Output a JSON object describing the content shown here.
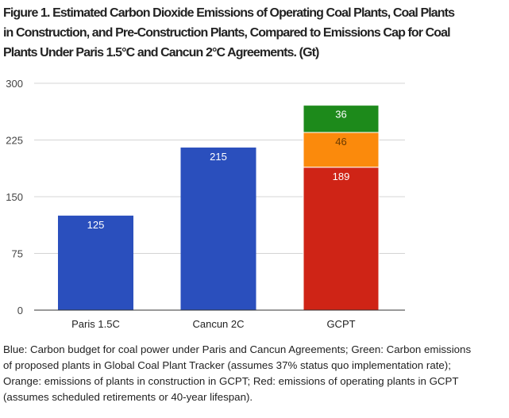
{
  "title_lines": [
    "Figure 1. Estimated Carbon Dioxide Emissions of Operating Coal Plants, Coal Plants",
    "in Construction, and Pre-Construction Plants, Compared to Emissions Cap for Coal",
    "Plants Under Paris 1.5°C and Cancun 2°C Agreements. (Gt)"
  ],
  "caption_lines": [
    "Blue: Carbon budget for coal power under Paris and Cancun Agreements; Green: Carbon emissions",
    "of proposed plants in Global Coal Plant Tracker (assumes 37% status quo implementation rate);",
    "Orange: emissions of plants in construction in GCPT; Red: emissions of operating plants in GCPT",
    "(assumes scheduled retirements or 40-year lifespan)."
  ],
  "chart_data": {
    "type": "bar",
    "stacked": true,
    "categories": [
      "Paris 1.5C",
      "Cancun 2C",
      "GCPT"
    ],
    "ylim": [
      0,
      300
    ],
    "yticks": [
      0,
      75,
      150,
      225,
      300
    ],
    "grid": true,
    "legend": "none",
    "segments": [
      {
        "category": "Paris 1.5C",
        "value": 125,
        "label": "125",
        "color": "#2a4fbd",
        "text_color": "#ffffff"
      },
      {
        "category": "Cancun 2C",
        "value": 215,
        "label": "215",
        "color": "#2a4fbd",
        "text_color": "#ffffff"
      },
      {
        "category": "GCPT",
        "value": 189,
        "label": "189",
        "color": "#cf2416",
        "text_color": "#ffffff"
      },
      {
        "category": "GCPT",
        "value": 46,
        "label": "46",
        "color": "#fb8a0c",
        "text_color": "#6a3a00"
      },
      {
        "category": "GCPT",
        "value": 36,
        "label": "36",
        "color": "#1d8a1b",
        "text_color": "#ffffff"
      }
    ]
  }
}
